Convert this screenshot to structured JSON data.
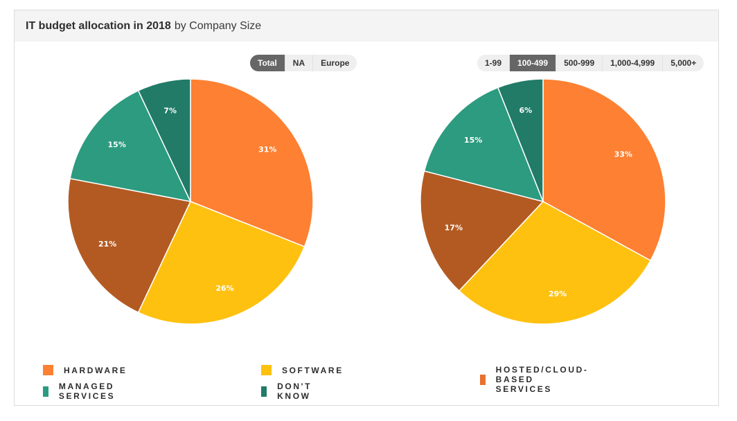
{
  "header": {
    "title_bold": "IT budget allocation in 2018",
    "title_rest": "by Company Size"
  },
  "left_selector": {
    "options": [
      "Total",
      "NA",
      "Europe"
    ],
    "active": "Total"
  },
  "right_selector": {
    "options": [
      "1-99",
      "100-499",
      "500-999",
      "1,000-4,999",
      "5,000+"
    ],
    "active": "100-499"
  },
  "legend": [
    {
      "label": "HARDWARE",
      "color": "#fe8032"
    },
    {
      "label": "SOFTWARE",
      "color": "#fec110"
    },
    {
      "label": "HOSTED/CLOUD-BASED SERVICES",
      "color": "#e8712f"
    },
    {
      "label": "MANAGED SERVICES",
      "color": "#2c9b7f"
    },
    {
      "label": "DON'T KNOW",
      "color": "#217b67"
    }
  ],
  "chart_data": [
    {
      "type": "pie",
      "title": "Total",
      "categories": [
        "Hardware",
        "Software",
        "Hosted/Cloud-Based Services",
        "Managed Services",
        "Don't Know"
      ],
      "values": [
        31,
        26,
        21,
        15,
        7
      ],
      "labels": [
        "31%",
        "26%",
        "21%",
        "15%",
        "7%"
      ],
      "colors": [
        "#fe8032",
        "#fec110",
        "#b35a22",
        "#2c9b7f",
        "#217b67"
      ],
      "start_angle": "12 o'clock, clockwise"
    },
    {
      "type": "pie",
      "title": "100-499",
      "categories": [
        "Hardware",
        "Software",
        "Hosted/Cloud-Based Services",
        "Managed Services",
        "Don't Know"
      ],
      "values": [
        33,
        29,
        17,
        15,
        6
      ],
      "labels": [
        "33%",
        "29%",
        "17%",
        "15%",
        "6%"
      ],
      "colors": [
        "#fe8032",
        "#fec110",
        "#b35a22",
        "#2c9b7f",
        "#217b67"
      ],
      "start_angle": "12 o'clock, clockwise"
    }
  ]
}
